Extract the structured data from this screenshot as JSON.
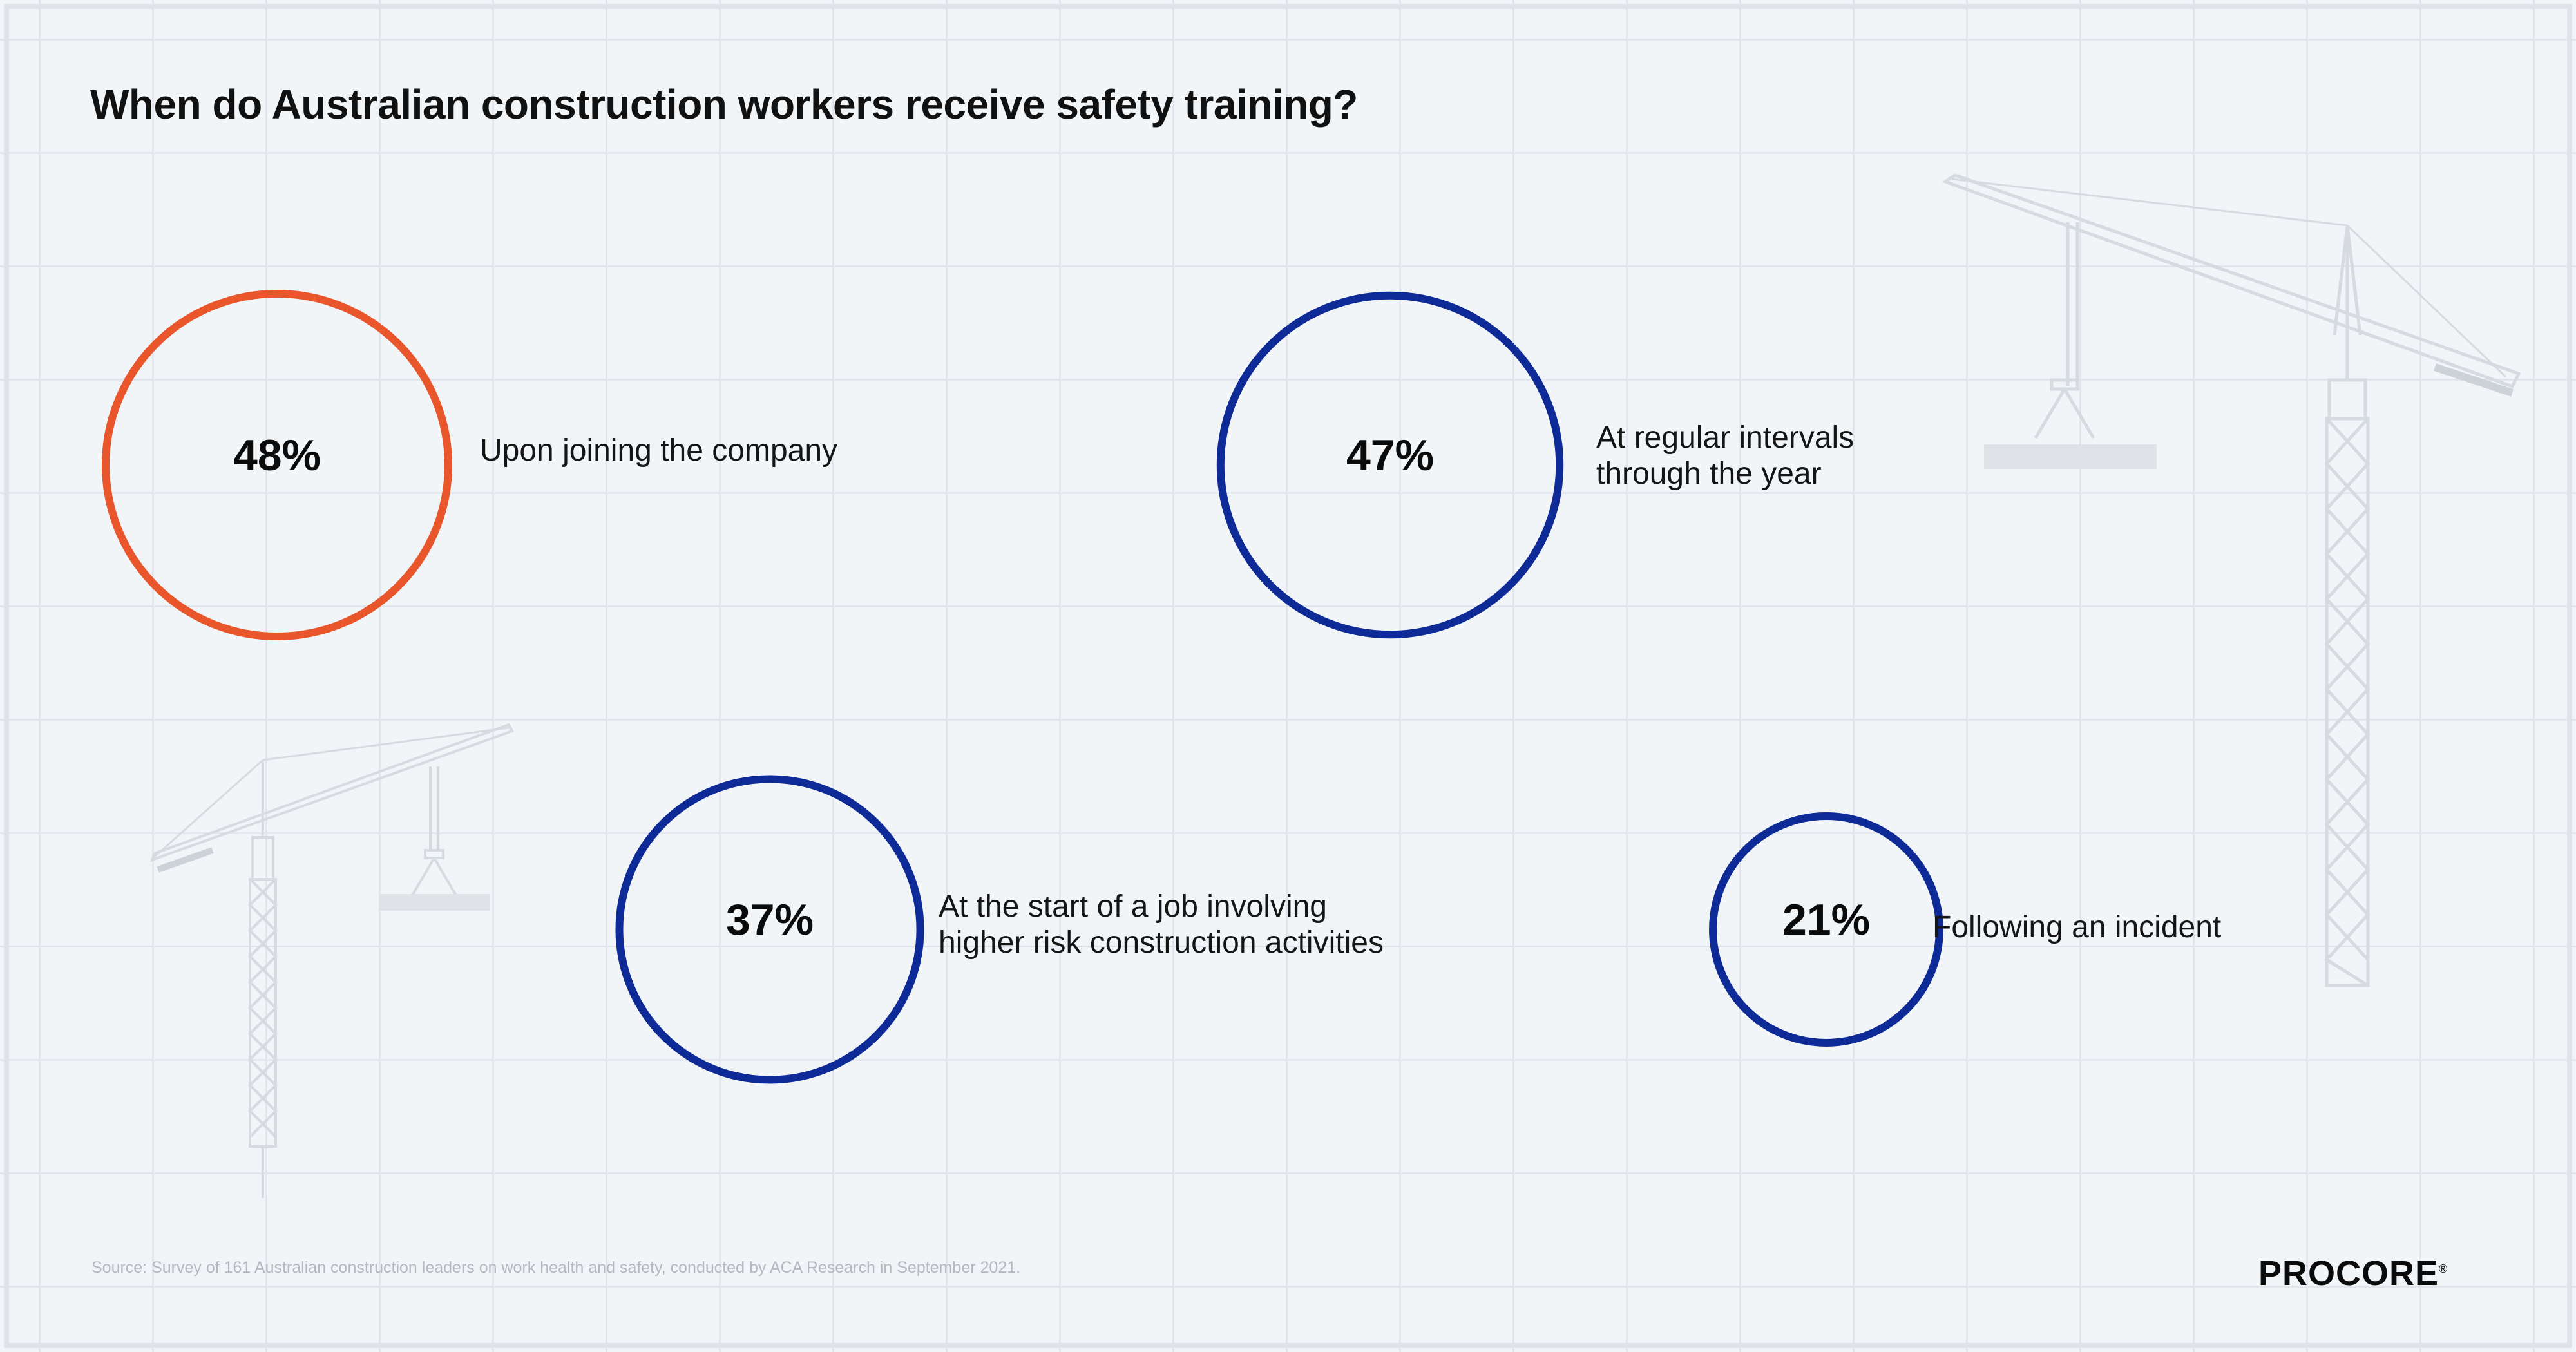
{
  "title": "When do Australian construction workers receive safety training?",
  "chart_data": {
    "type": "bubble",
    "unit": "%",
    "items": [
      {
        "value": 48,
        "display": "48%",
        "label": "Upon joining the company",
        "color": "#e9562b"
      },
      {
        "value": 47,
        "display": "47%",
        "label": "At regular intervals\nthrough the year",
        "color": "#0d2a96"
      },
      {
        "value": 37,
        "display": "37%",
        "label": "At the start of a job involving\nhigher risk construction activities",
        "color": "#0d2a96"
      },
      {
        "value": 21,
        "display": "21%",
        "label": "Following an incident",
        "color": "#0d2a96"
      }
    ]
  },
  "source": "Source: Survey of 161 Australian construction leaders on work health and safety, conducted by ACA Research in September 2021.",
  "brand": {
    "name": "PROCORE",
    "mark": "®"
  },
  "colors": {
    "accent": "#e9562b",
    "primary": "#0d2a96",
    "background": "#f2f5f8",
    "grid": "#e2e5eb"
  }
}
